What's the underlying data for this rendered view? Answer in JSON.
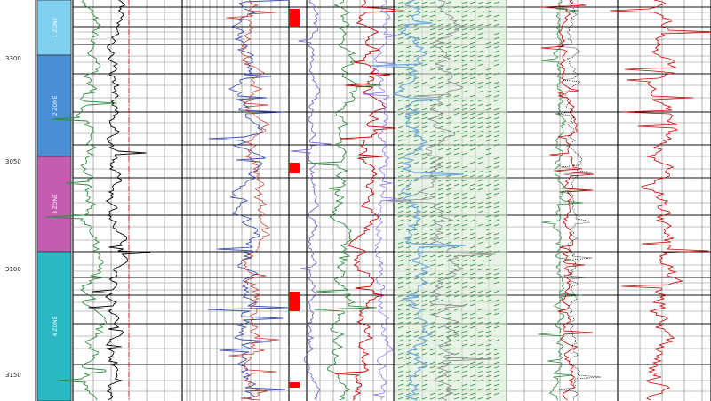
{
  "chart_data": {
    "type": "line",
    "depth_axis": {
      "range": [
        3274,
        3174
      ],
      "tick_labels": [
        "3300",
        "3050",
        "3100",
        "3150"
      ],
      "tick_values": [
        3300,
        3050,
        3100,
        3150
      ]
    },
    "zones": [
      {
        "label": "1 ZONE",
        "top": 3274,
        "bottom": 3300,
        "color": "#7fd0ee"
      },
      {
        "label": "2 ZONE",
        "top": 3300,
        "bottom": 3050,
        "color": "#4a8fd6"
      },
      {
        "label": "3 ZONE",
        "top": 3050,
        "bottom": 3100,
        "color": "#c45cb0"
      },
      {
        "label": "4 ZONE",
        "top": 3100,
        "bottom": 3174,
        "color": "#2ab8c4"
      }
    ],
    "tracks": [
      {
        "name": "track-1",
        "series": [
          {
            "color": "#2e8b3e"
          },
          {
            "color": "#000000"
          },
          {
            "color": "#cc0000",
            "style": "dashdot"
          }
        ]
      },
      {
        "name": "track-2",
        "series": [
          {
            "color": "#3a4db0"
          },
          {
            "color": "#c0392b"
          }
        ]
      },
      {
        "name": "track-3",
        "series": [
          {
            "color": "#6a5acd"
          },
          {
            "color": "#ff0000",
            "style": "blocks"
          }
        ]
      },
      {
        "name": "track-4",
        "series": [
          {
            "color": "#2e8b3e"
          },
          {
            "color": "#cc0000"
          }
        ]
      },
      {
        "name": "track-5",
        "series": [
          {
            "color": "#2e8b3e",
            "style": "lithology"
          },
          {
            "color": "#6fa8dc",
            "style": "fill"
          }
        ]
      },
      {
        "name": "track-6",
        "series": [
          {
            "color": "#2e8b3e"
          },
          {
            "color": "#cc0000"
          },
          {
            "color": "#000000",
            "style": "dotted"
          }
        ]
      },
      {
        "name": "track-7",
        "series": [
          {
            "color": "#cc0000"
          }
        ]
      }
    ]
  }
}
